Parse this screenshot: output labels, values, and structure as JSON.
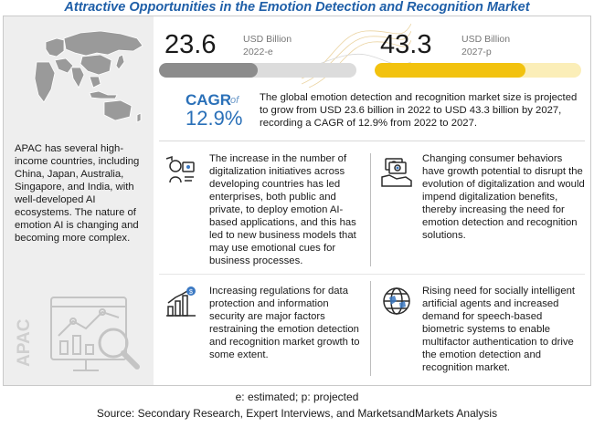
{
  "title": "Attractive Opportunities in the Emotion Detection and Recognition Market",
  "left_panel": {
    "text": "APAC has several high-income countries, including China, Japan, Australia, Singapore, and India, with well-developed AI ecosystems. The nature of emotion AI is changing and becoming more complex.",
    "region_label": "APAC"
  },
  "stats": [
    {
      "value": "23.6",
      "unit": "USD Billion",
      "year": "2022-e",
      "fraction": 0.5,
      "color": "#8c8c8c",
      "track": "#dcdcdc"
    },
    {
      "value": "43.3",
      "unit": "USD Billion",
      "year": "2027-p",
      "fraction": 0.73,
      "color": "#f2c20f",
      "track": "#fbeeb8"
    }
  ],
  "cagr": {
    "label": "CAGR",
    "of": "of",
    "value": "12.9%",
    "text": "The global emotion detection and recognition market size is projected to grow from USD 23.6 billion in 2022 to USD 43.3 billion by 2027, recording a CAGR of 12.9% from 2022 to 2027."
  },
  "points": [
    {
      "icon": "digitalization-icon",
      "text": "The increase in the number of digitalization initiatives across developing countries has led enterprises, both public and private, to deploy emotion AI-based applications, and this has led to new business models that may use emotional cues for business processes."
    },
    {
      "icon": "consumer-money-icon",
      "text": "Changing consumer behaviors have growth potential to disrupt the evolution of digitalization and would impend digitalization benefits, thereby increasing the need for emotion detection and recognition solutions."
    },
    {
      "icon": "regulation-growth-icon",
      "text": "Increasing regulations for data protection and information security are major factors restraining the emotion detection and recognition market growth to some extent."
    },
    {
      "icon": "globe-speech-icon",
      "text": "Rising need for socially intelligent artificial agents and increased demand for speech-based biometric systems to enable multifactor authentication to drive the emotion detection and recognition market."
    }
  ],
  "footer": {
    "legend": "e: estimated; p: projected",
    "source": "Source: Secondary Research, Expert Interviews, and MarketsandMarkets Analysis"
  }
}
